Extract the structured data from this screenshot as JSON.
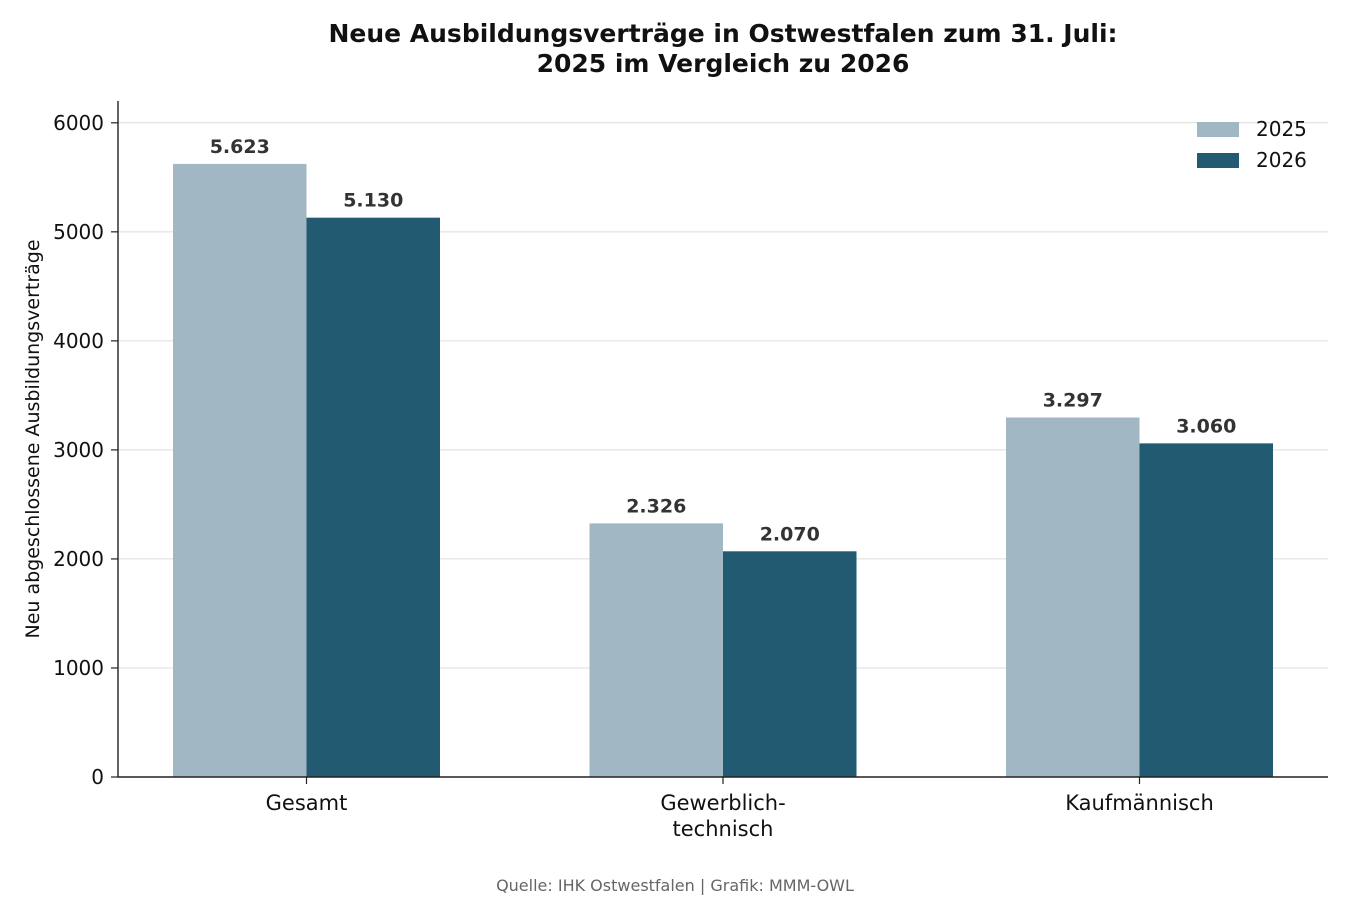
{
  "chart_data": {
    "type": "bar",
    "title_lines": [
      "Neue Ausbildungsverträge in Ostwestfalen zum 31. Juli:",
      "2025 im Vergleich zu 2026"
    ],
    "categories": [
      [
        "Gesamt"
      ],
      [
        "Gewerblich-",
        "technisch"
      ],
      [
        "Kaufmännisch"
      ]
    ],
    "series": [
      {
        "name": "2025",
        "color": "#a1b7c3",
        "values": [
          5623,
          2326,
          3297
        ],
        "labels": [
          "5.623",
          "2.326",
          "3.297"
        ]
      },
      {
        "name": "2026",
        "color": "#225a72",
        "values": [
          5130,
          2070,
          3060
        ],
        "labels": [
          "5.130",
          "2.070",
          "3.060"
        ]
      }
    ],
    "xlabel": "",
    "ylabel": "Neu abgeschlossene Ausbildungsverträge",
    "ylim": [
      0,
      6200
    ],
    "yticks": [
      0,
      1000,
      2000,
      3000,
      4000,
      5000,
      6000
    ],
    "grid": "horizontal",
    "legend_position": "top-right",
    "source": "Quelle: IHK Ostwestfalen | Grafik: MMM-OWL"
  }
}
